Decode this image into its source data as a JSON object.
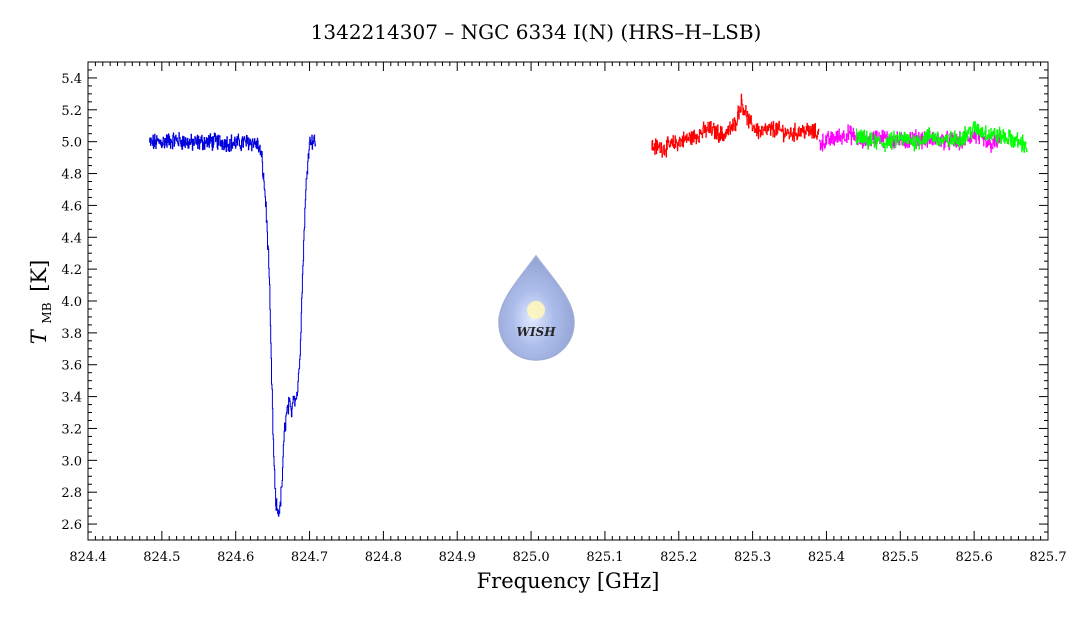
{
  "chart_data": {
    "type": "line",
    "title": "1342214307 – NGC 6334 I(N) (HRS–H–LSB)",
    "xlabel": "Frequency [GHz]",
    "ylabel_main": "T",
    "ylabel_sub": "MB",
    "ylabel_unit": "[K]",
    "xlim": [
      824.4,
      825.7
    ],
    "ylim": [
      2.5,
      5.5
    ],
    "xticks": [
      "824.4",
      "824.5",
      "824.6",
      "824.7",
      "824.8",
      "824.9",
      "825.0",
      "825.1",
      "825.2",
      "825.3",
      "825.4",
      "825.5",
      "825.6",
      "825.7"
    ],
    "yticks": [
      "2.6",
      "2.8",
      "3.0",
      "3.2",
      "3.4",
      "3.6",
      "3.8",
      "4.0",
      "4.2",
      "4.4",
      "4.6",
      "4.8",
      "5.0",
      "5.2",
      "5.4"
    ],
    "grid": false,
    "logo_text": "WISH",
    "series": [
      {
        "color": "#0000dd",
        "x": [
          824.483,
          824.5,
          824.52,
          824.54,
          824.56,
          824.58,
          824.6,
          824.62,
          824.63,
          824.635,
          824.64,
          824.645,
          824.648,
          824.651,
          824.654,
          824.657,
          824.66,
          824.663,
          824.666,
          824.669,
          824.672,
          824.675,
          824.678,
          824.681,
          824.684,
          824.687,
          824.69,
          824.693,
          824.696,
          824.699,
          824.702,
          824.705,
          824.708
        ],
        "y": [
          4.99,
          5.0,
          5.01,
          4.99,
          5.0,
          5.0,
          4.99,
          5.0,
          4.98,
          4.9,
          4.65,
          4.2,
          3.6,
          3.05,
          2.72,
          2.68,
          2.7,
          2.9,
          3.2,
          3.3,
          3.35,
          3.3,
          3.42,
          3.38,
          3.45,
          3.7,
          4.1,
          4.5,
          4.8,
          4.98,
          5.02,
          5.0,
          5.01
        ]
      },
      {
        "color": "#ff0000",
        "x": [
          825.163,
          825.18,
          825.2,
          825.22,
          825.24,
          825.26,
          825.275,
          825.285,
          825.295,
          825.31,
          825.33,
          825.35,
          825.37,
          825.39
        ],
        "y": [
          4.97,
          4.96,
          5.0,
          5.03,
          5.08,
          5.04,
          5.1,
          5.25,
          5.12,
          5.06,
          5.08,
          5.05,
          5.07,
          5.05
        ]
      },
      {
        "color": "#ff00ff",
        "x": [
          825.39,
          825.41,
          825.43,
          825.45,
          825.47,
          825.5,
          825.52,
          825.55,
          825.58,
          825.6,
          825.62,
          825.635
        ],
        "y": [
          4.99,
          5.02,
          5.05,
          5.0,
          5.03,
          5.0,
          5.02,
          5.01,
          5.0,
          5.04,
          4.98,
          5.0
        ]
      },
      {
        "color": "#00ff00",
        "x": [
          825.44,
          825.46,
          825.48,
          825.5,
          825.52,
          825.54,
          825.56,
          825.58,
          825.6,
          825.62,
          825.64,
          825.66,
          825.672
        ],
        "y": [
          5.03,
          5.0,
          4.99,
          5.02,
          5.0,
          5.04,
          5.0,
          5.02,
          5.08,
          5.05,
          5.03,
          5.0,
          4.97
        ]
      }
    ]
  }
}
